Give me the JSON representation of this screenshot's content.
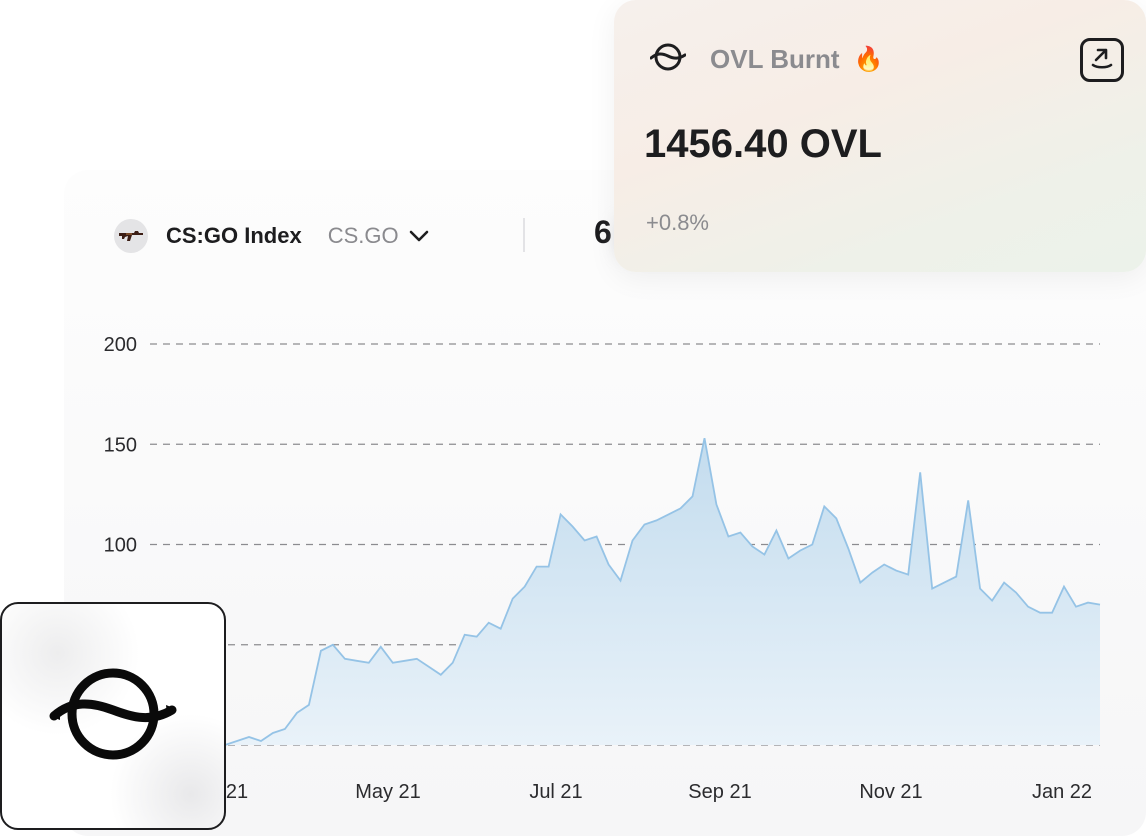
{
  "asset": {
    "name": "CS:GO Index",
    "ticker": "CS.GO",
    "icon": "rifle-icon",
    "price_visible": "6"
  },
  "burn_card": {
    "title": "OVL Burnt",
    "fire_icon": "🔥",
    "amount": "1456.40 OVL",
    "change": "+0.8%",
    "logo_icon": "overlay-logo-icon",
    "action_icon": "external-link-icon"
  },
  "colors": {
    "line": "#95c3e6",
    "fill_top": "#c3dcee",
    "fill_bottom": "#e9f2f9",
    "grid": "#8c8c90"
  },
  "chart_data": {
    "type": "area",
    "y_ticks": [
      200,
      150,
      100
    ],
    "x_labels": [
      "21",
      "May 21",
      "Jul 21",
      "Sep 21",
      "Nov 21",
      "Jan 22"
    ],
    "ylim": [
      0,
      200
    ],
    "grid": "dashed horizontal",
    "series": [
      {
        "values": [
          0,
          2,
          4,
          2,
          6,
          8,
          16,
          20,
          47,
          50,
          43,
          42,
          41,
          49,
          41,
          42,
          43,
          39,
          35,
          41,
          55,
          54,
          61,
          58,
          73,
          79,
          89,
          89,
          115,
          109,
          102,
          104,
          90,
          82,
          102,
          110,
          112,
          115,
          118,
          124,
          153,
          120,
          104,
          106,
          99,
          95,
          107,
          93,
          97,
          100,
          119,
          113,
          98,
          81,
          86,
          90,
          87,
          85,
          136,
          78,
          81,
          84,
          122,
          78,
          72,
          81,
          76,
          69,
          66,
          66,
          79,
          69,
          71,
          70
        ]
      }
    ]
  }
}
